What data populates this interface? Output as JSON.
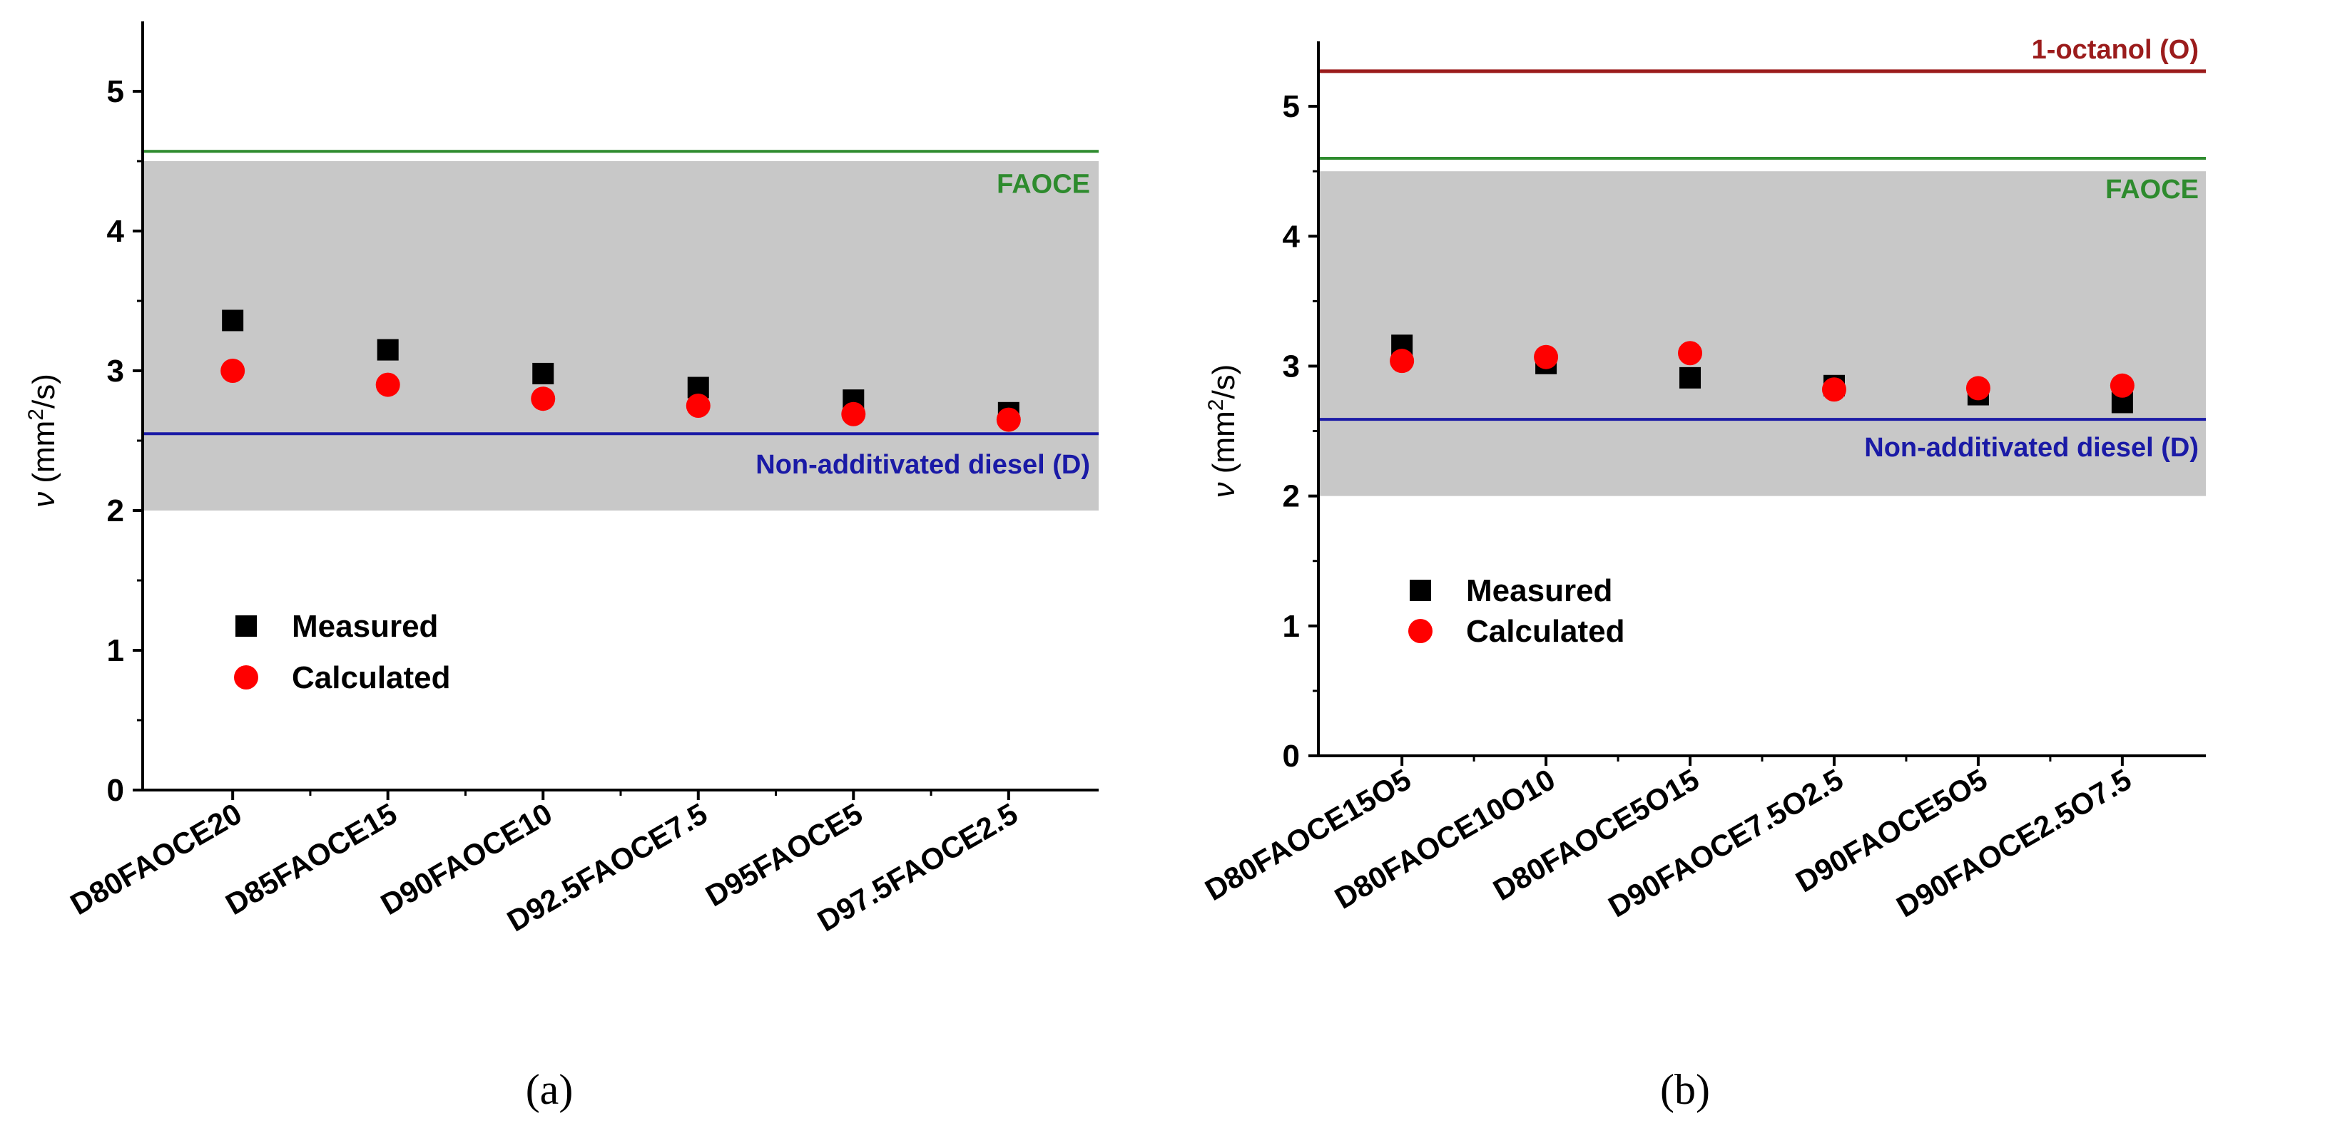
{
  "chart_data": [
    {
      "type": "scatter",
      "panel_caption": "(a)",
      "ylabel_symbol": "ν",
      "ylabel_unit_prefix": "(mm",
      "ylabel_unit_exp": "2",
      "ylabel_unit_suffix": "/s)",
      "ylim": [
        0,
        5.5
      ],
      "yticks": [
        0,
        1,
        2,
        3,
        4,
        5
      ],
      "categories": [
        "D80FAOCE20",
        "D85FAOCE15",
        "D90FAOCE10",
        "D92.5FAOCE7.5",
        "D95FAOCE5",
        "D97.5FAOCE2.5"
      ],
      "series": [
        {
          "name": "Measured",
          "marker": "square",
          "color": "#000000",
          "values": [
            3.36,
            3.15,
            2.98,
            2.88,
            2.79,
            2.7
          ]
        },
        {
          "name": "Calculated",
          "marker": "circle",
          "color": "#ff0000",
          "values": [
            3.0,
            2.9,
            2.8,
            2.75,
            2.69,
            2.65
          ]
        }
      ],
      "shaded_band": {
        "ymin": 2.0,
        "ymax": 4.5,
        "color": "#c8c8c8"
      },
      "reference_lines": [
        {
          "label": "FAOCE",
          "value": 4.57,
          "color": "#2e8b2e"
        },
        {
          "label": "Non-additivated diesel (D)",
          "value": 2.55,
          "color": "#1a1aa6"
        }
      ],
      "legend_position": "lower-left"
    },
    {
      "type": "scatter",
      "panel_caption": "(b)",
      "ylabel_symbol": "ν",
      "ylabel_unit_prefix": "(mm",
      "ylabel_unit_exp": "2",
      "ylabel_unit_suffix": "/s)",
      "ylim": [
        0,
        5.5
      ],
      "yticks": [
        0,
        1,
        2,
        3,
        4,
        5
      ],
      "categories": [
        "D80FAOCE15O5",
        "D80FAOCE10O10",
        "D80FAOCE5O15",
        "D90FAOCE7.5O2.5",
        "D90FAOCE5O5",
        "D90FAOCE2.5O7.5"
      ],
      "series": [
        {
          "name": "Measured",
          "marker": "square",
          "color": "#000000",
          "values": [
            3.16,
            3.02,
            2.91,
            2.85,
            2.78,
            2.72
          ]
        },
        {
          "name": "Calculated",
          "marker": "circle",
          "color": "#ff0000",
          "values": [
            3.04,
            3.07,
            3.1,
            2.82,
            2.83,
            2.85
          ]
        }
      ],
      "shaded_band": {
        "ymin": 2.0,
        "ymax": 4.5,
        "color": "#c8c8c8"
      },
      "reference_lines": [
        {
          "label": "1-octanol (O)",
          "value": 5.27,
          "color": "#9b1c1c"
        },
        {
          "label": "FAOCE",
          "value": 4.6,
          "color": "#2e8b2e"
        },
        {
          "label": "Non-additivated diesel (D)",
          "value": 2.59,
          "color": "#1a1aa6"
        }
      ],
      "legend_position": "middle-left"
    }
  ]
}
